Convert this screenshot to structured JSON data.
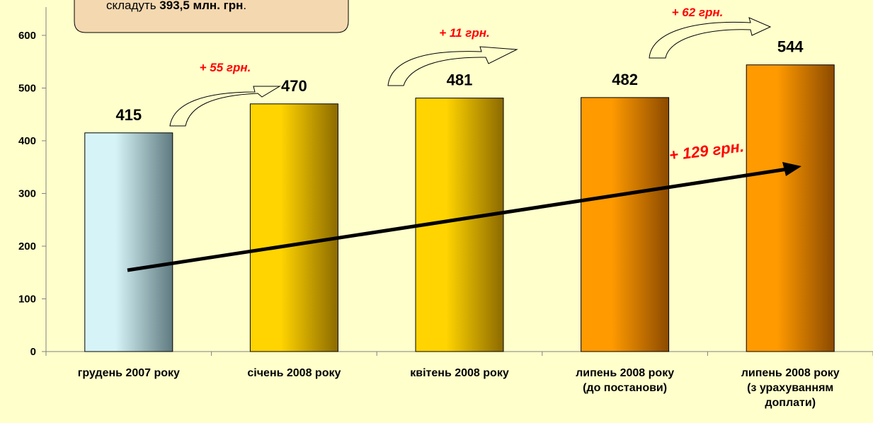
{
  "chart_data": {
    "type": "bar",
    "categories": [
      [
        "грудень 2007 року"
      ],
      [
        "січень 2008 року"
      ],
      [
        "квітень 2008 року"
      ],
      [
        "липень 2008 року",
        "(до постанови)"
      ],
      [
        "липень 2008 року",
        "(з урахуванням",
        "доплати)"
      ]
    ],
    "values": [
      415,
      470,
      481,
      482,
      544
    ],
    "value_labels": [
      "415",
      "470",
      "481",
      "482",
      "544"
    ],
    "ylim": [
      0,
      600
    ],
    "yticks": [
      0,
      100,
      200,
      300,
      400,
      500,
      600
    ],
    "grid": false,
    "bar_colors": [
      {
        "light": "#d6f4f8",
        "dark": "#5f7a80"
      },
      {
        "light": "#ffd400",
        "dark": "#8c6a00"
      },
      {
        "light": "#ffd400",
        "dark": "#8c6a00"
      },
      {
        "light": "#ff9a00",
        "dark": "#8c4a00"
      },
      {
        "light": "#ff9a00",
        "dark": "#8c4a00"
      }
    ],
    "annotations": [
      {
        "text": "+ 55 грн.",
        "from": 0,
        "to": 1
      },
      {
        "text": "+ 11 грн.",
        "from": 1,
        "to": 2
      },
      {
        "text": "+ 62 грн.",
        "from": 3,
        "to": 4
      },
      {
        "text": "+ 129 грн.",
        "from": 0,
        "to": 4,
        "trend": true
      }
    ]
  },
  "note": {
    "prefix": "складуть ",
    "bold": "393,5 млн. грн",
    "suffix": "."
  },
  "colors": {
    "background": "#ffffcc",
    "note_fill": "#f4d8b0",
    "annotation": "#ff0000"
  }
}
